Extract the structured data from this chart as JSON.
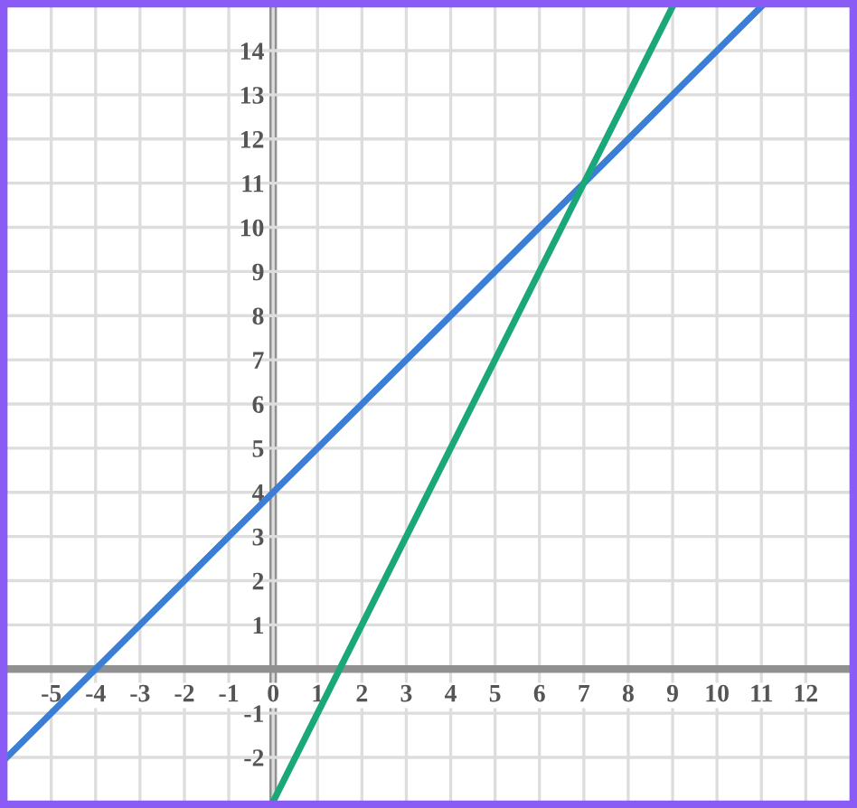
{
  "chart_data": {
    "type": "line",
    "series": [
      {
        "color": "#3a7fd5",
        "x": [
          -6,
          -4,
          0,
          7,
          11
        ],
        "values": [
          -2,
          0,
          4,
          11,
          15
        ]
      },
      {
        "color": "#1aa87a",
        "x": [
          0,
          1.5,
          7,
          9
        ],
        "values": [
          -3,
          0,
          11,
          15
        ]
      }
    ],
    "xlim": [
      -6,
      13
    ],
    "ylim": [
      -3,
      15
    ],
    "xticks": [
      -5,
      -4,
      -3,
      -2,
      -1,
      0,
      1,
      2,
      3,
      4,
      5,
      6,
      7,
      8,
      9,
      10,
      11,
      12
    ],
    "yticks": [
      -2,
      -1,
      1,
      2,
      3,
      4,
      5,
      6,
      7,
      8,
      9,
      10,
      11,
      12,
      13,
      14
    ],
    "grid": true,
    "marker": "none",
    "line_style": "solid"
  }
}
